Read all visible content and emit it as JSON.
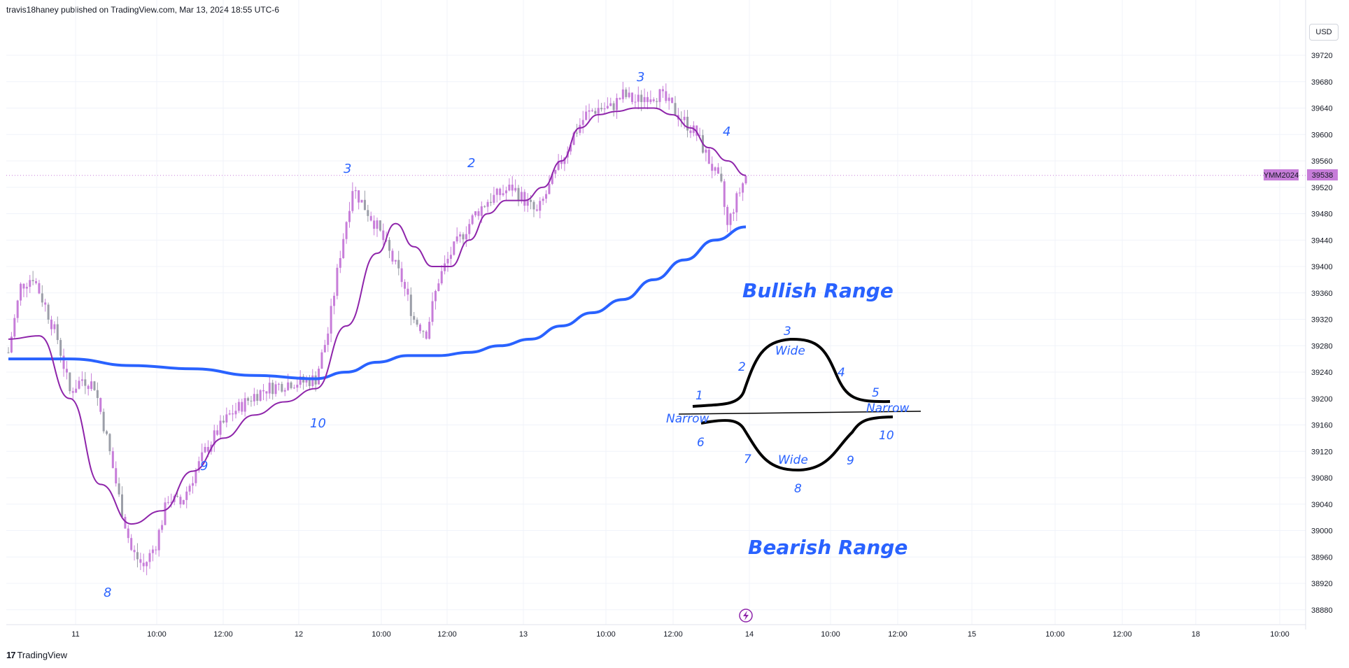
{
  "header": {
    "published_text": "travis18haney published on TradingView.com, Mar 13, 2024 18:55 UTC-6",
    "currency": "USD"
  },
  "footer": {
    "logo_mark": "17",
    "brand": "TradingView"
  },
  "colors": {
    "candle": "#c77dd9",
    "candle_gray": "#9b9ea8",
    "fast_ma": "#8e24aa",
    "slow_ma": "#2962ff",
    "annotation": "#2962ff",
    "label_bg": "#c77dd9"
  },
  "price_label": {
    "symbol": "YMM2024",
    "price": "39538"
  },
  "chart_data": {
    "type": "candlestick",
    "title": "",
    "y_axis": {
      "ticks": [
        39720,
        39680,
        39640,
        39600,
        39560,
        39520,
        39480,
        39440,
        39400,
        39360,
        39320,
        39280,
        39240,
        39200,
        39160,
        39120,
        39080,
        39040,
        39000,
        38960,
        38920,
        38880
      ],
      "range": [
        38860,
        39755
      ]
    },
    "x_axis": {
      "tick_labels": [
        "11",
        "10:00",
        "12:00",
        "12",
        "10:00",
        "12:00",
        "13",
        "10:00",
        "12:00",
        "14",
        "10:00",
        "12:00",
        "15",
        "10:00",
        "12:00",
        "18",
        "10:00"
      ]
    },
    "last_price": 39538,
    "price_path": [
      [
        0,
        39270
      ],
      [
        4,
        39370
      ],
      [
        8,
        39385
      ],
      [
        12,
        39340
      ],
      [
        16,
        39290
      ],
      [
        20,
        39210
      ],
      [
        24,
        39230
      ],
      [
        28,
        39220
      ],
      [
        32,
        39140
      ],
      [
        36,
        39050
      ],
      [
        40,
        38970
      ],
      [
        44,
        38945
      ],
      [
        48,
        38980
      ],
      [
        52,
        39050
      ],
      [
        56,
        39040
      ],
      [
        60,
        39080
      ],
      [
        64,
        39120
      ],
      [
        68,
        39150
      ],
      [
        72,
        39175
      ],
      [
        76,
        39190
      ],
      [
        80,
        39205
      ],
      [
        84,
        39215
      ],
      [
        88,
        39220
      ],
      [
        92,
        39225
      ],
      [
        96,
        39225
      ],
      [
        100,
        39230
      ],
      [
        104,
        39300
      ],
      [
        108,
        39420
      ],
      [
        112,
        39520
      ],
      [
        116,
        39490
      ],
      [
        120,
        39460
      ],
      [
        124,
        39420
      ],
      [
        128,
        39380
      ],
      [
        132,
        39320
      ],
      [
        136,
        39300
      ],
      [
        140,
        39380
      ],
      [
        144,
        39420
      ],
      [
        148,
        39450
      ],
      [
        152,
        39480
      ],
      [
        156,
        39500
      ],
      [
        160,
        39510
      ],
      [
        164,
        39520
      ],
      [
        168,
        39500
      ],
      [
        172,
        39480
      ],
      [
        176,
        39520
      ],
      [
        180,
        39560
      ],
      [
        184,
        39600
      ],
      [
        188,
        39630
      ],
      [
        192,
        39640
      ],
      [
        196,
        39640
      ],
      [
        200,
        39660
      ],
      [
        204,
        39650
      ],
      [
        208,
        39660
      ],
      [
        212,
        39660
      ],
      [
        216,
        39640
      ],
      [
        220,
        39620
      ],
      [
        224,
        39600
      ],
      [
        228,
        39560
      ],
      [
        232,
        39520
      ],
      [
        234,
        39460
      ],
      [
        236,
        39490
      ],
      [
        240,
        39538
      ]
    ],
    "fast_ma": [
      [
        0,
        39290
      ],
      [
        10,
        39295
      ],
      [
        20,
        39200
      ],
      [
        30,
        39070
      ],
      [
        40,
        39010
      ],
      [
        50,
        39030
      ],
      [
        60,
        39090
      ],
      [
        70,
        39140
      ],
      [
        80,
        39175
      ],
      [
        90,
        39195
      ],
      [
        100,
        39215
      ],
      [
        110,
        39310
      ],
      [
        120,
        39420
      ],
      [
        126,
        39465
      ],
      [
        132,
        39430
      ],
      [
        138,
        39400
      ],
      [
        144,
        39400
      ],
      [
        150,
        39440
      ],
      [
        156,
        39480
      ],
      [
        162,
        39500
      ],
      [
        168,
        39500
      ],
      [
        174,
        39520
      ],
      [
        180,
        39560
      ],
      [
        186,
        39610
      ],
      [
        192,
        39630
      ],
      [
        198,
        39635
      ],
      [
        204,
        39640
      ],
      [
        210,
        39640
      ],
      [
        216,
        39630
      ],
      [
        222,
        39610
      ],
      [
        228,
        39580
      ],
      [
        234,
        39560
      ],
      [
        240,
        39538
      ]
    ],
    "slow_ma": [
      [
        0,
        39260
      ],
      [
        20,
        39260
      ],
      [
        40,
        39250
      ],
      [
        60,
        39245
      ],
      [
        80,
        39235
      ],
      [
        100,
        39230
      ],
      [
        110,
        39240
      ],
      [
        120,
        39255
      ],
      [
        130,
        39265
      ],
      [
        140,
        39265
      ],
      [
        150,
        39270
      ],
      [
        160,
        39280
      ],
      [
        170,
        39290
      ],
      [
        180,
        39310
      ],
      [
        190,
        39330
      ],
      [
        200,
        39350
      ],
      [
        210,
        39380
      ],
      [
        220,
        39410
      ],
      [
        230,
        39440
      ],
      [
        240,
        39460
      ]
    ],
    "annotations": {
      "bullish_range": "Bullish Range",
      "bearish_range": "Bearish Range",
      "wave_labels": [
        {
          "text": "3"
        },
        {
          "text": "2"
        },
        {
          "text": "3"
        },
        {
          "text": "4"
        },
        {
          "text": "10"
        },
        {
          "text": "9"
        },
        {
          "text": "8"
        }
      ],
      "diagram_labels": [
        "1",
        "2",
        "3",
        "Wide",
        "4",
        "5",
        "Narrow",
        "Narrow",
        "6",
        "7",
        "Wide",
        "8",
        "9",
        "10"
      ]
    }
  }
}
